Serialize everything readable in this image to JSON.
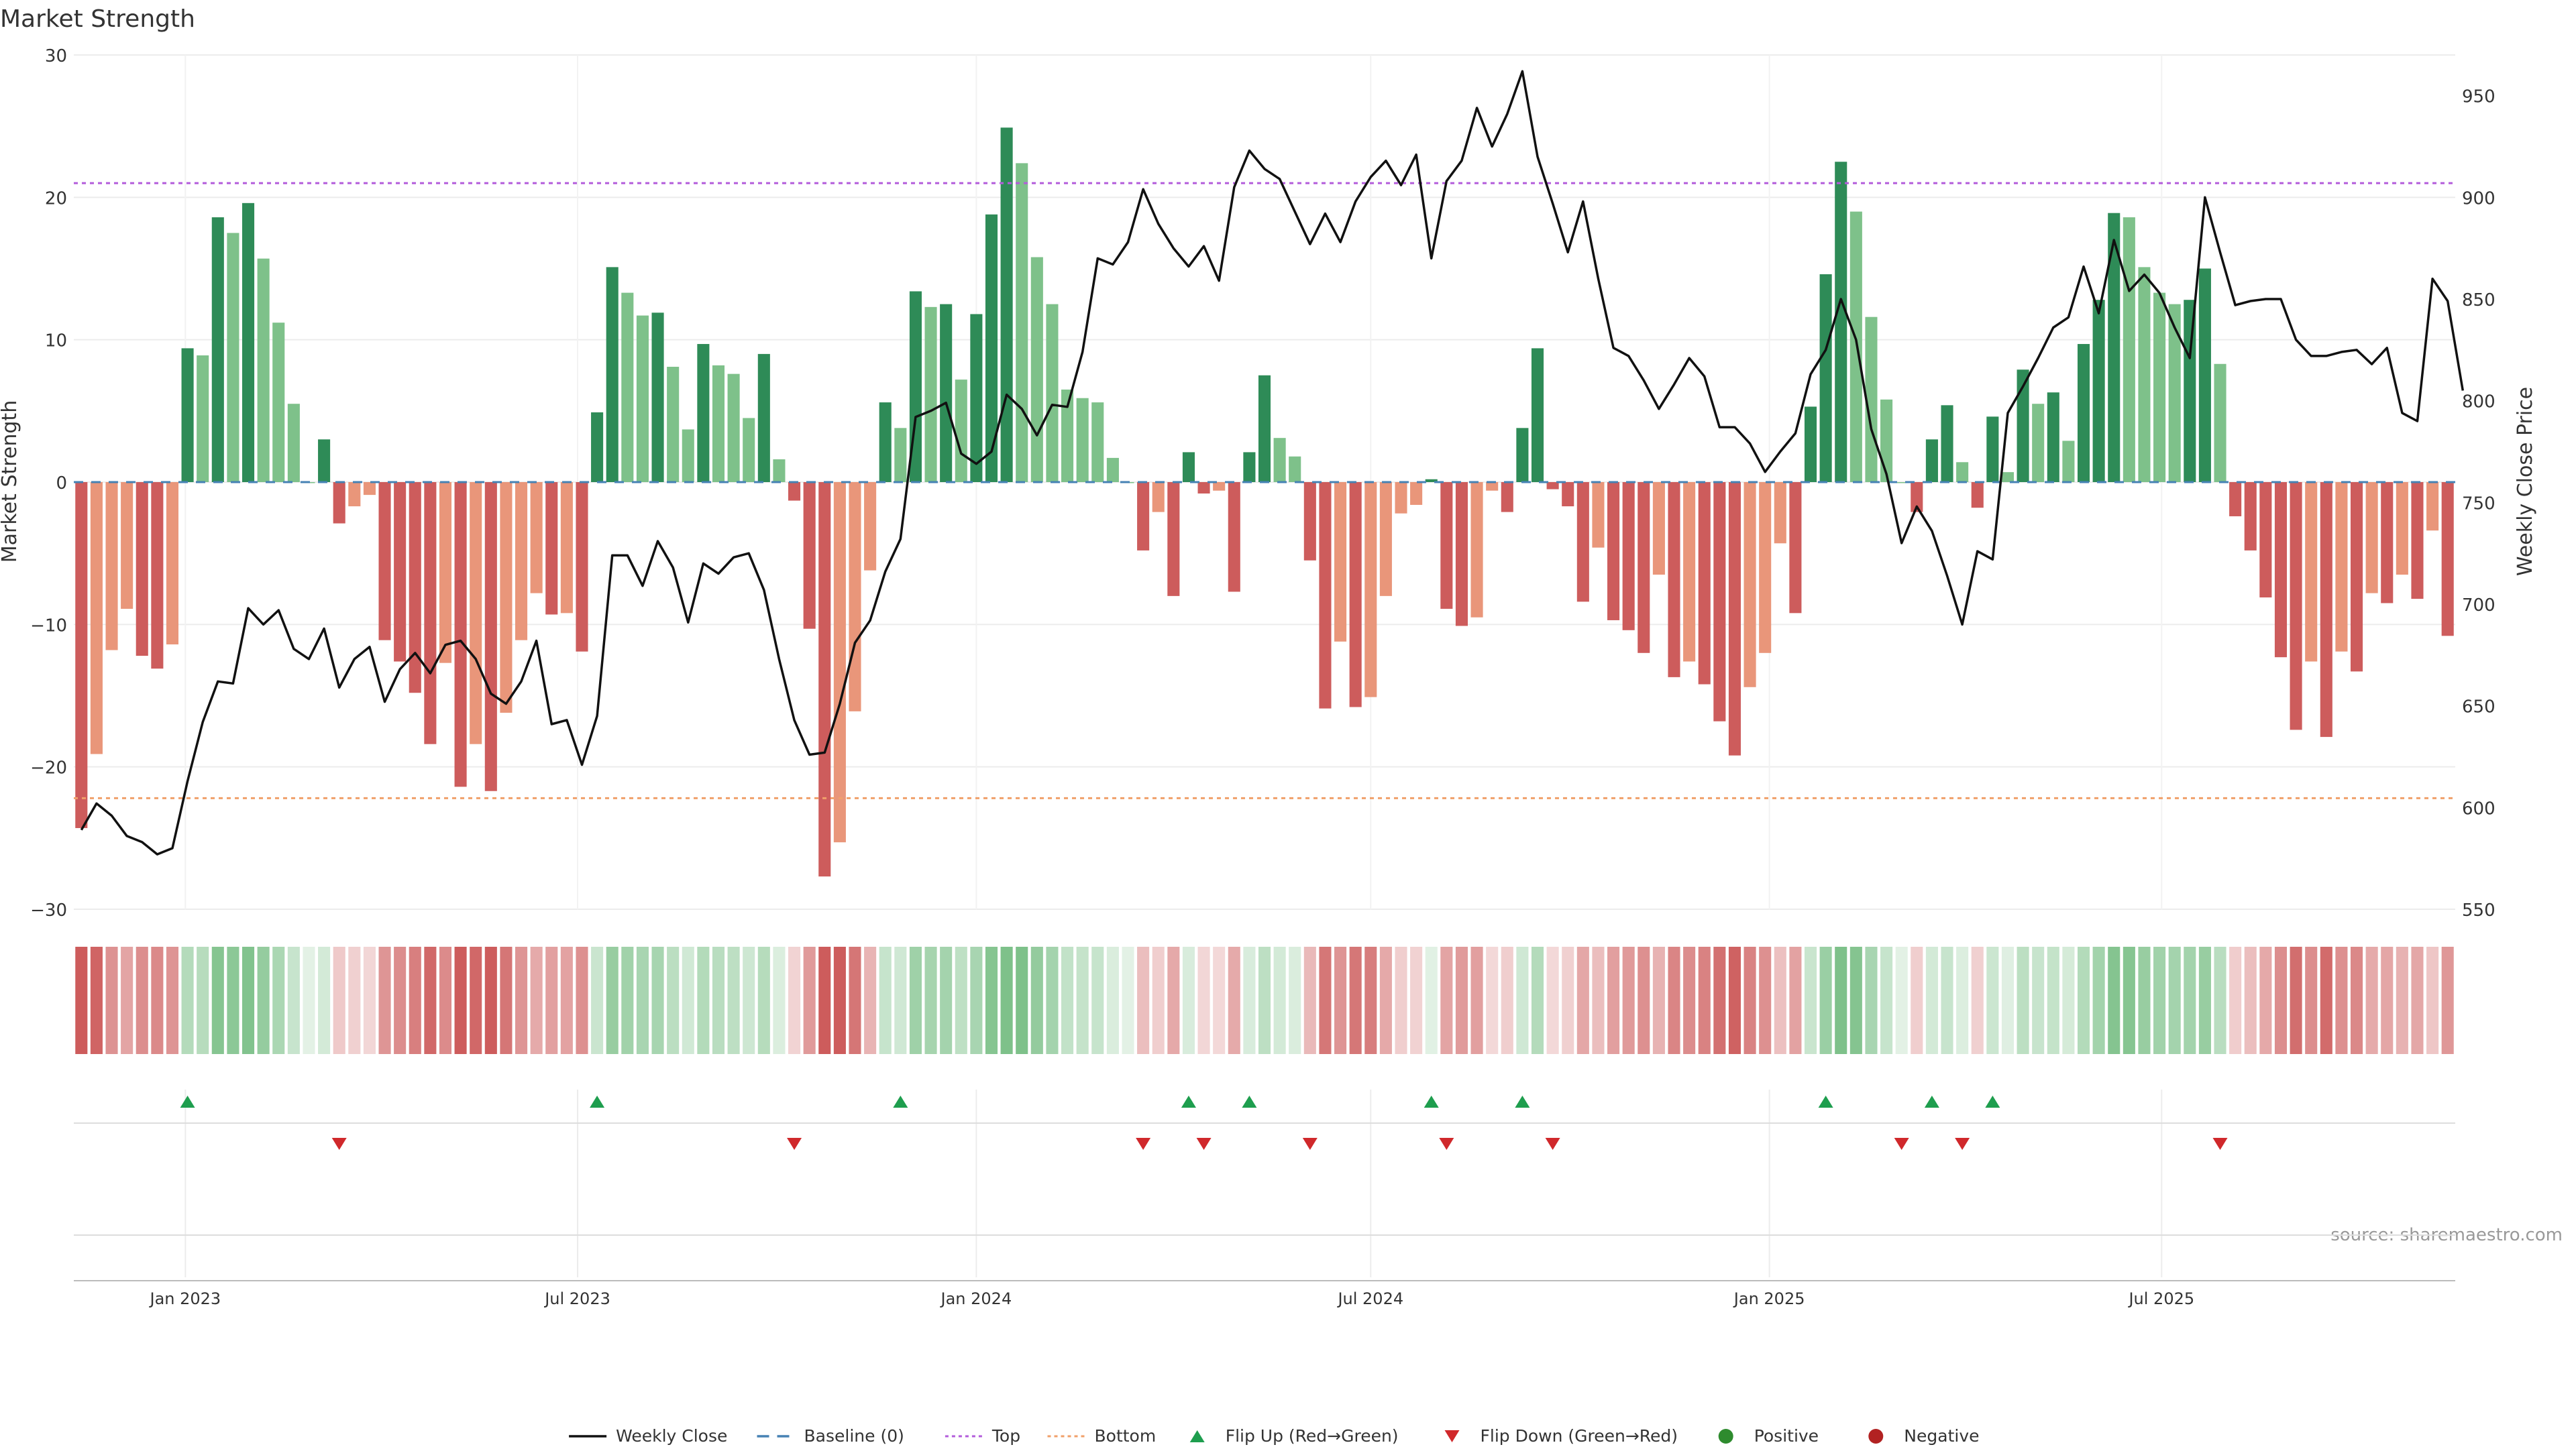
{
  "chart_data": {
    "type": "bar",
    "title": "Market Strength",
    "source": "source: sharemaestro.com",
    "ylabel": "Market Strength",
    "y2label": "Weekly Close Price",
    "ylim": [
      -30,
      30
    ],
    "y2lim": [
      550,
      970
    ],
    "yticks": [
      -30,
      -20,
      -10,
      0,
      10,
      20,
      30
    ],
    "y2ticks": [
      550,
      600,
      650,
      700,
      750,
      800,
      850,
      900,
      950
    ],
    "top_line": 21,
    "bottom_line": -22.2,
    "start_date": "2022-11-14",
    "xticks": [
      {
        "date": "2023-01-01",
        "label": "Jan 2023"
      },
      {
        "date": "2023-07-01",
        "label": "Jul 2023"
      },
      {
        "date": "2024-01-01",
        "label": "Jan 2024"
      },
      {
        "date": "2024-07-01",
        "label": "Jul 2024"
      },
      {
        "date": "2025-01-01",
        "label": "Jan 2025"
      },
      {
        "date": "2025-07-01",
        "label": "Jul 2025"
      }
    ],
    "strength": [
      -24.3,
      -19.1,
      -11.8,
      -8.9,
      -12.2,
      -13.1,
      -11.4,
      9.4,
      8.9,
      18.6,
      17.5,
      19.6,
      15.7,
      11.2,
      5.5,
      0,
      3,
      -2.9,
      -1.7,
      -0.9,
      -11.1,
      -12.6,
      -14.8,
      -18.4,
      -12.7,
      -21.4,
      -18.4,
      -21.7,
      -16.2,
      -11.1,
      -7.8,
      -9.3,
      -9.2,
      -11.9,
      4.9,
      15.1,
      13.3,
      11.7,
      11.9,
      8.1,
      3.7,
      9.7,
      8.2,
      7.6,
      4.5,
      9,
      1.6,
      -1.3,
      -10.3,
      -27.7,
      -25.3,
      -16.1,
      -6.2,
      5.6,
      3.8,
      13.4,
      12.3,
      12.5,
      7.2,
      11.8,
      18.8,
      24.9,
      22.4,
      15.8,
      12.5,
      6.5,
      5.9,
      5.6,
      1.7,
      0,
      -4.8,
      -2.1,
      -8,
      2.1,
      -0.8,
      -0.6,
      -7.7,
      2.1,
      7.5,
      3.1,
      1.8,
      -5.5,
      -15.9,
      -11.2,
      -15.8,
      -15.1,
      -8,
      -2.2,
      -1.6,
      0.2,
      -8.9,
      -10.1,
      -9.5,
      -0.6,
      -2.1,
      3.8,
      9.4,
      -0.5,
      -1.7,
      -8.4,
      -4.6,
      -9.7,
      -10.4,
      -12,
      -6.5,
      -13.7,
      -12.6,
      -14.2,
      -16.8,
      -19.2,
      -14.4,
      -12,
      -4.3,
      -9.2,
      5.3,
      14.6,
      22.5,
      19,
      11.6,
      5.8,
      0,
      -2.1,
      3,
      5.4,
      1.4,
      -1.8,
      4.6,
      0.7,
      7.9,
      5.5,
      6.3,
      2.9,
      9.7,
      12.8,
      18.9,
      18.6,
      15.1,
      13.3,
      12.5,
      12.8,
      15,
      8.3,
      -2.4,
      -4.8,
      -8.1,
      -12.3,
      -17.4,
      -12.6,
      -17.9,
      -11.9,
      -13.3,
      -7.8,
      -8.5,
      -6.5,
      -8.2,
      -3.4,
      -10.8
    ],
    "weekly_close": [
      589,
      602,
      596,
      586,
      583,
      577,
      580,
      613,
      642,
      662,
      661,
      698,
      690,
      697,
      678,
      673,
      688,
      659,
      673,
      679,
      652,
      668,
      676,
      666,
      680,
      682,
      673,
      656,
      651,
      662,
      682,
      641,
      643,
      621,
      645,
      724,
      724,
      709,
      731,
      718,
      691,
      720,
      715,
      723,
      725,
      707,
      673,
      643,
      626,
      627,
      651,
      681,
      692,
      716,
      732,
      792,
      795,
      799,
      774,
      769,
      775,
      803,
      796,
      783,
      798,
      797,
      824,
      870,
      867,
      878,
      904,
      887,
      875,
      866,
      876,
      859,
      905,
      923,
      914,
      909,
      893,
      877,
      892,
      878,
      898,
      910,
      918,
      906,
      921,
      870,
      908,
      918,
      944,
      925,
      941,
      962,
      920,
      897,
      873,
      898,
      860,
      826,
      822,
      810,
      796,
      808,
      821,
      812,
      787,
      787,
      779,
      765,
      775,
      784,
      813,
      825,
      850,
      830,
      786,
      764,
      730,
      748,
      736,
      714,
      690,
      726,
      722,
      794,
      807,
      821,
      836,
      841,
      866,
      843,
      879,
      854,
      862,
      853,
      836,
      821,
      900,
      873,
      847,
      849,
      850,
      850,
      830,
      822,
      822,
      824,
      825,
      818,
      826,
      794,
      790,
      860,
      849,
      805
    ],
    "flip_up_weeks": [
      7,
      34,
      54,
      73,
      77,
      89,
      95,
      115,
      122,
      126
    ],
    "flip_down_weeks": [
      17,
      47,
      70,
      74,
      81,
      90,
      97,
      120,
      124,
      141
    ],
    "colors": {
      "pos_dark": "#2e8b57",
      "pos_light": "#7ec18a",
      "neg_dark": "#cd5c5c",
      "neg_light": "#e9967a",
      "baseline": "#4682b4",
      "top": "#b35cdb",
      "bottom": "#f0a06a",
      "close": "#111111",
      "flip_up": "#1e9e4e",
      "flip_down": "#d0282b",
      "positive": "#2e8b2e",
      "negative": "#b22222"
    },
    "legend": {
      "placement": "bottom",
      "items": [
        {
          "label": "Weekly Close",
          "kind": "line-solid"
        },
        {
          "label": "Baseline (0)",
          "kind": "line-dashed-blue"
        },
        {
          "label": "Top",
          "kind": "line-dotted-purple"
        },
        {
          "label": "Bottom",
          "kind": "line-dotted-orange"
        },
        {
          "label": "Flip Up (Red→Green)",
          "kind": "tri-up"
        },
        {
          "label": "Flip Down (Green→Red)",
          "kind": "tri-down"
        },
        {
          "label": "Positive",
          "kind": "dot-green"
        },
        {
          "label": "Negative",
          "kind": "dot-red"
        }
      ]
    }
  }
}
